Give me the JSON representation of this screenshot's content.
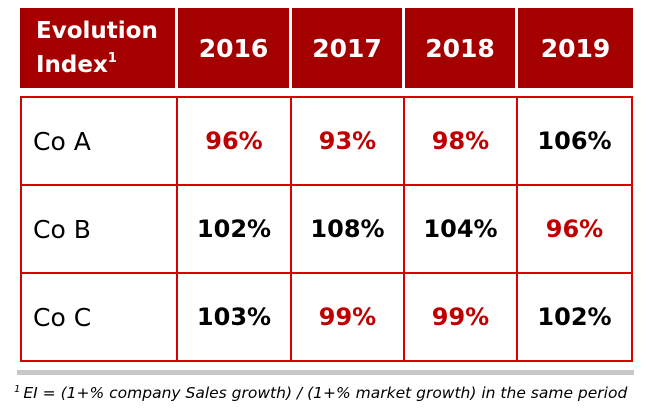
{
  "table": {
    "header_label": "Evolution Index",
    "header_label_line1": "Evolution",
    "header_label_line2": "Index",
    "header_footnote_marker": "1",
    "years": [
      "2016",
      "2017",
      "2018",
      "2019"
    ],
    "rows": [
      {
        "company": "Co A",
        "values": [
          {
            "text": "96%",
            "highlight": true
          },
          {
            "text": "93%",
            "highlight": true
          },
          {
            "text": "98%",
            "highlight": true
          },
          {
            "text": "106%",
            "highlight": false
          }
        ]
      },
      {
        "company": "Co B",
        "values": [
          {
            "text": "102%",
            "highlight": false
          },
          {
            "text": "108%",
            "highlight": false
          },
          {
            "text": "104%",
            "highlight": false
          },
          {
            "text": "96%",
            "highlight": true
          }
        ]
      },
      {
        "company": "Co C",
        "values": [
          {
            "text": "103%",
            "highlight": false
          },
          {
            "text": "99%",
            "highlight": true
          },
          {
            "text": "99%",
            "highlight": true
          },
          {
            "text": "102%",
            "highlight": false
          }
        ]
      }
    ]
  },
  "footnote": {
    "marker": "1",
    "text": "EI = (1+% company Sales growth) / (1+% market growth) in the same period"
  },
  "colors": {
    "header_bg": "#a50000",
    "header_text": "#ffffff",
    "border": "#d80000",
    "highlight_text": "#c00000",
    "normal_text": "#000000",
    "rule": "#c8c8c8"
  }
}
